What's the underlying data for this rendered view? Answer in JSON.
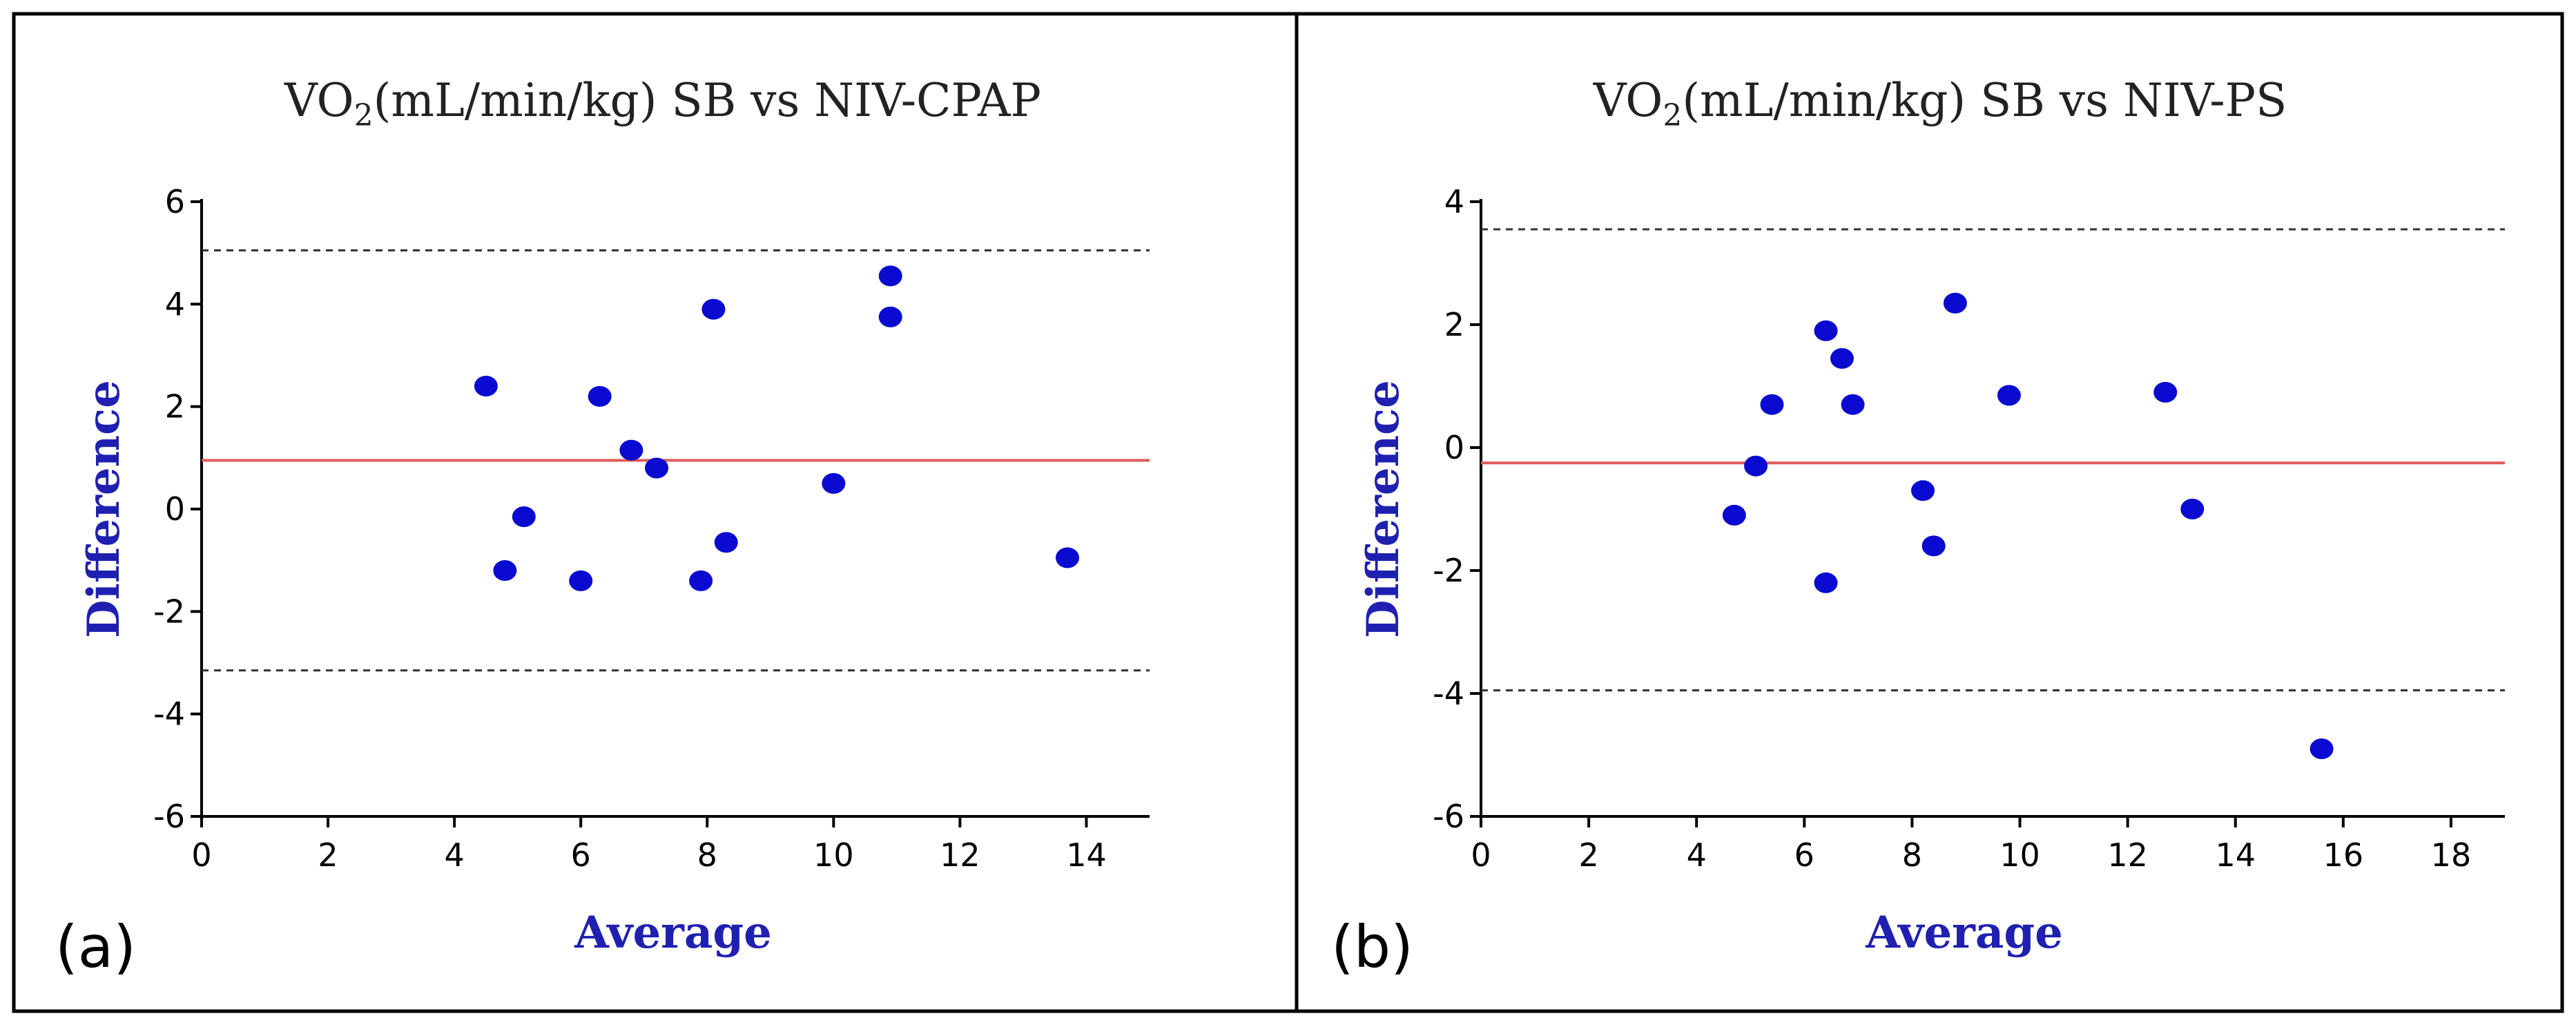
{
  "chart_data": [
    {
      "type": "scatter",
      "panel_label": "(a)",
      "title": {
        "prefix": "VO",
        "subscript": "2",
        "suffix": "(mL/min/kg) SB vs NIV-CPAP"
      },
      "xlabel": "Average",
      "ylabel": "Difference",
      "xlim": [
        0,
        15
      ],
      "ylim": [
        -6,
        6
      ],
      "xticks": [
        0,
        2,
        4,
        6,
        8,
        10,
        12,
        14
      ],
      "yticks": [
        -6,
        -4,
        -2,
        0,
        2,
        4,
        6
      ],
      "mean_difference": 0.95,
      "limits_of_agreement": [
        5.05,
        -3.15
      ],
      "points": [
        {
          "x": 4.5,
          "y": 2.4
        },
        {
          "x": 4.8,
          "y": -1.2
        },
        {
          "x": 5.1,
          "y": -0.15
        },
        {
          "x": 6.0,
          "y": -1.4
        },
        {
          "x": 6.3,
          "y": 2.2
        },
        {
          "x": 6.8,
          "y": 1.15
        },
        {
          "x": 7.2,
          "y": 0.8
        },
        {
          "x": 7.9,
          "y": -1.4
        },
        {
          "x": 8.1,
          "y": 3.9
        },
        {
          "x": 8.3,
          "y": -0.65
        },
        {
          "x": 10.0,
          "y": 0.5
        },
        {
          "x": 10.9,
          "y": 4.55
        },
        {
          "x": 10.9,
          "y": 3.75
        },
        {
          "x": 13.7,
          "y": -0.95
        }
      ]
    },
    {
      "type": "scatter",
      "panel_label": "(b)",
      "title": {
        "prefix": "VO",
        "subscript": "2",
        "suffix": "(mL/min/kg) SB vs NIV-PS"
      },
      "xlabel": "Average",
      "ylabel": "Difference",
      "xlim": [
        0,
        19
      ],
      "ylim": [
        -6,
        4
      ],
      "xticks": [
        0,
        2,
        4,
        6,
        8,
        10,
        12,
        14,
        16,
        18
      ],
      "yticks": [
        -6,
        -4,
        -2,
        0,
        2,
        4
      ],
      "mean_difference": -0.25,
      "limits_of_agreement": [
        3.55,
        -3.95
      ],
      "points": [
        {
          "x": 4.7,
          "y": -1.1
        },
        {
          "x": 5.1,
          "y": -0.3
        },
        {
          "x": 5.4,
          "y": 0.7
        },
        {
          "x": 6.4,
          "y": 1.9
        },
        {
          "x": 6.4,
          "y": -2.2
        },
        {
          "x": 6.7,
          "y": 1.45
        },
        {
          "x": 6.9,
          "y": 0.7
        },
        {
          "x": 8.2,
          "y": -0.7
        },
        {
          "x": 8.4,
          "y": -1.6
        },
        {
          "x": 8.8,
          "y": 2.35
        },
        {
          "x": 9.8,
          "y": 0.85
        },
        {
          "x": 12.7,
          "y": 0.9
        },
        {
          "x": 13.2,
          "y": -1.0
        },
        {
          "x": 15.6,
          "y": -4.9
        }
      ]
    }
  ]
}
